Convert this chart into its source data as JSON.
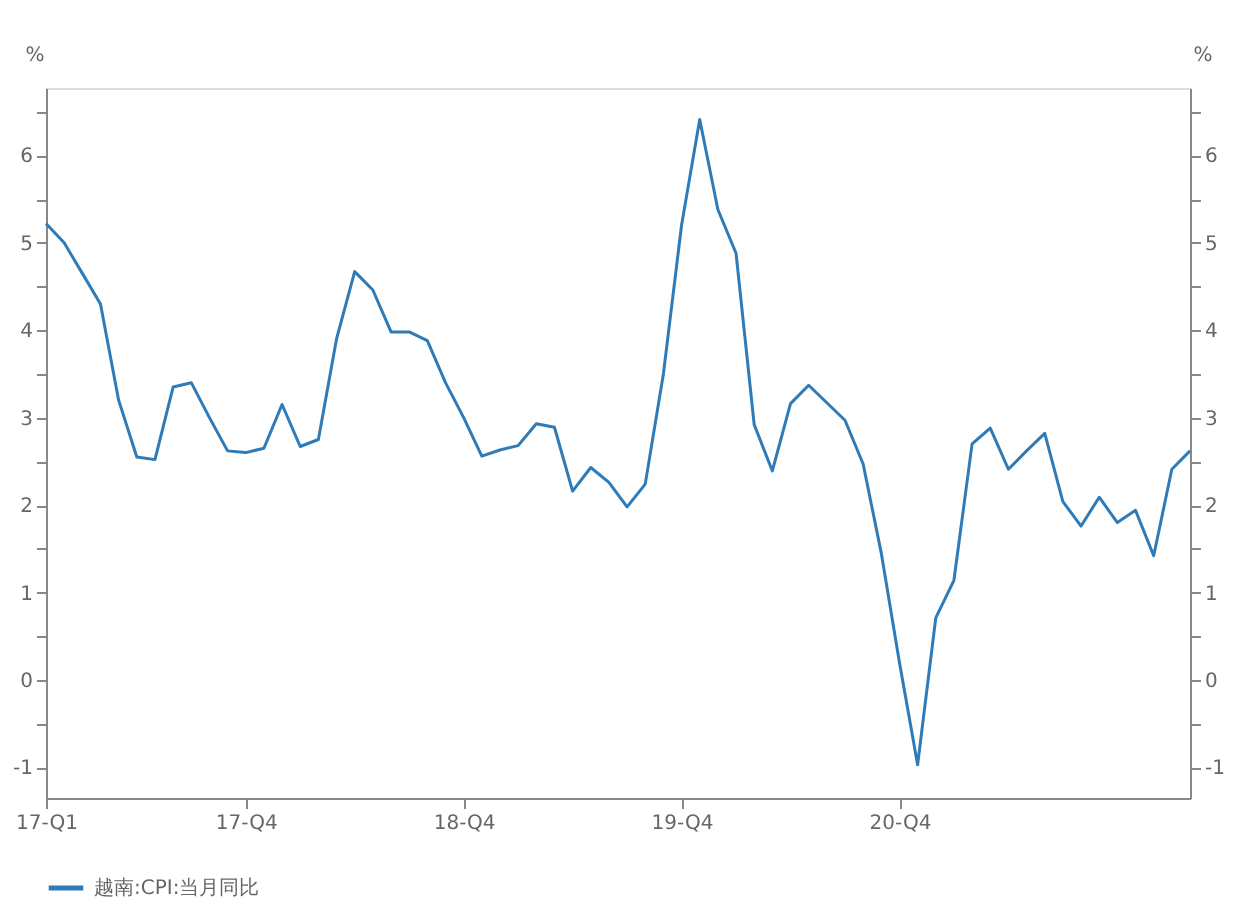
{
  "chart_data": {
    "type": "line",
    "ylabel": "%",
    "y2label": "%",
    "categories": [
      "17-Q1",
      null,
      null,
      null,
      null,
      null,
      null,
      null,
      null,
      null,
      null,
      "17-Q4",
      null,
      null,
      null,
      null,
      null,
      null,
      null,
      null,
      null,
      null,
      null,
      "18-Q4",
      null,
      null,
      null,
      null,
      null,
      null,
      null,
      null,
      null,
      null,
      null,
      "19-Q4",
      null,
      null,
      null,
      null,
      null,
      null,
      null,
      null,
      null,
      null,
      null,
      "20-Q4",
      null,
      null,
      null,
      null,
      null,
      null,
      null,
      null,
      null,
      null,
      null,
      null,
      null,
      null,
      null,
      null
    ],
    "series": [
      {
        "name": "越南:CPI:当月同比",
        "color": "#2e7bb8",
        "values": [
          5.22,
          5.0,
          4.65,
          4.3,
          3.2,
          2.55,
          2.52,
          3.35,
          3.4,
          3.0,
          2.62,
          2.6,
          2.65,
          3.15,
          2.67,
          2.75,
          3.9,
          4.67,
          4.46,
          3.98,
          3.98,
          3.88,
          3.4,
          3.0,
          2.56,
          2.63,
          2.68,
          2.93,
          2.89,
          2.16,
          2.43,
          2.26,
          1.98,
          2.24,
          3.5,
          5.2,
          6.41,
          5.38,
          4.88,
          2.92,
          2.39,
          3.16,
          3.37,
          3.17,
          2.97,
          2.47,
          1.45,
          0.2,
          -0.97,
          0.71,
          1.14,
          2.7,
          2.88,
          2.41,
          2.62,
          2.82,
          2.04,
          1.76,
          2.09,
          1.8,
          1.94,
          1.42,
          2.41,
          2.62
        ]
      }
    ],
    "ylim": [
      -1.35,
      6.77
    ],
    "yticks": [
      -1,
      {
        "value": -0.5,
        "label": null
      },
      0,
      {
        "value": 0.5,
        "label": null
      },
      1,
      {
        "value": 1.5,
        "label": null
      },
      2,
      {
        "value": 2.5,
        "label": null
      },
      3,
      {
        "value": 3.5,
        "label": null
      },
      4,
      {
        "value": 4.5,
        "label": null
      },
      5,
      {
        "value": 5.5,
        "label": null
      },
      6,
      {
        "value": 6.5,
        "label": null
      }
    ],
    "y2lim": [
      -1.35,
      6.77
    ],
    "y2ticks": [
      -1,
      {
        "value": -0.5,
        "label": null
      },
      0,
      {
        "value": 0.5,
        "label": null
      },
      1,
      {
        "value": 1.5,
        "label": null
      },
      2,
      {
        "value": 2.5,
        "label": null
      },
      3,
      {
        "value": 3.5,
        "label": null
      },
      4,
      {
        "value": 4.5,
        "label": null
      },
      5,
      {
        "value": 5.5,
        "label": null
      },
      6,
      {
        "value": 6.5,
        "label": null
      }
    ],
    "grid": false,
    "legend": "bottom",
    "marker": "none",
    "line_style": "solid"
  }
}
